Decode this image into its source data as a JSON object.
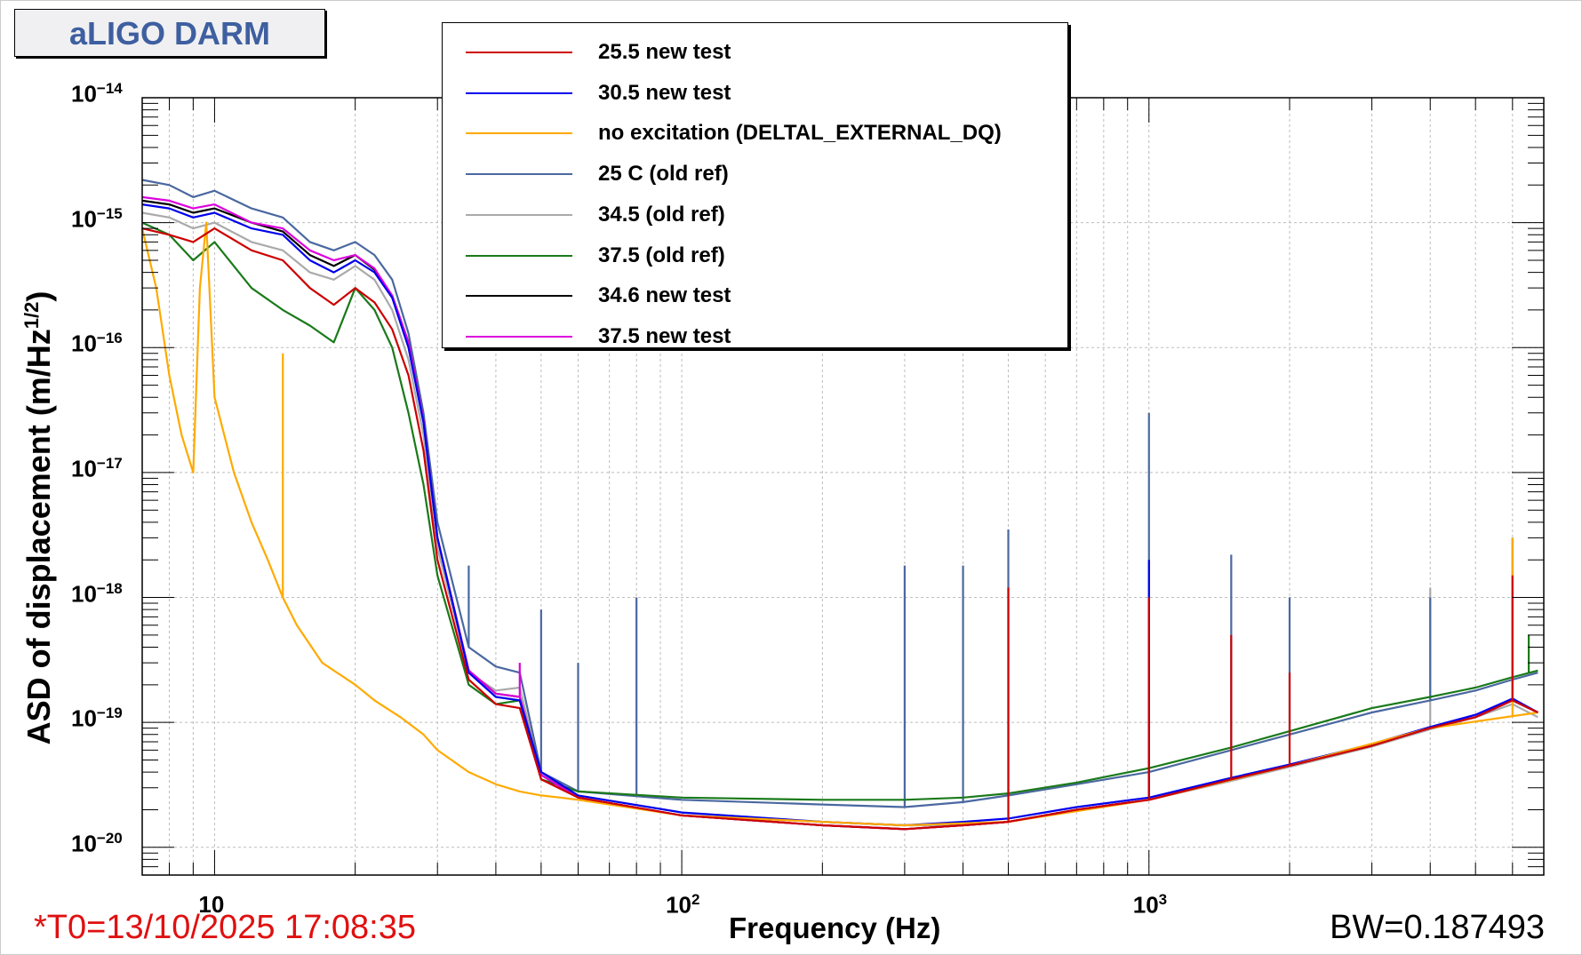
{
  "title": "aLIGO DARM",
  "t0_text": "*T0=13/10/2025 17:08:35",
  "bw_text": "BW=0.187493",
  "chart_data": {
    "type": "line",
    "xlabel": "Frequency (Hz)",
    "ylabel": "ASD of displacement (m/Hz^1/2)",
    "xscale": "log",
    "yscale": "log",
    "xlim": [
      7,
      7000
    ],
    "ylim": [
      6e-21,
      1e-14
    ],
    "grid": true,
    "legend_position": "top-center",
    "x_tick_labels": [
      {
        "value": 10,
        "label": "10"
      },
      {
        "value": 100,
        "label": "10",
        "exp": "2"
      },
      {
        "value": 1000,
        "label": "10",
        "exp": "3"
      }
    ],
    "y_tick_labels": [
      {
        "value": 1e-20,
        "label": "10",
        "exp": "−20"
      },
      {
        "value": 1e-19,
        "label": "10",
        "exp": "−19"
      },
      {
        "value": 1e-18,
        "label": "10",
        "exp": "−18"
      },
      {
        "value": 1e-17,
        "label": "10",
        "exp": "−17"
      },
      {
        "value": 1e-16,
        "label": "10",
        "exp": "−16"
      },
      {
        "value": 1e-15,
        "label": "10",
        "exp": "−15"
      },
      {
        "value": 1e-14,
        "label": "10",
        "exp": "−14"
      }
    ],
    "series": [
      {
        "name": "25.5 new test",
        "color": "#cc0000",
        "x": [
          7,
          8,
          9,
          10,
          12,
          14,
          16,
          18,
          20,
          22,
          24,
          26,
          28,
          30,
          35,
          40,
          45,
          50,
          60,
          100,
          200,
          300,
          400,
          500,
          700,
          1000,
          1500,
          2000,
          3000,
          4000,
          5000,
          6000,
          6800
        ],
        "y": [
          9e-16,
          8e-16,
          7e-16,
          9e-16,
          6e-16,
          5e-16,
          3e-16,
          2.2e-16,
          3e-16,
          2.3e-16,
          1.4e-16,
          6e-17,
          1.5e-17,
          2e-18,
          2.2e-19,
          1.4e-19,
          1.3e-19,
          3.5e-20,
          2.5e-20,
          1.8e-20,
          1.5e-20,
          1.4e-20,
          1.5e-20,
          1.6e-20,
          2e-20,
          2.4e-20,
          3.5e-20,
          4.5e-20,
          6.5e-20,
          9e-20,
          1.1e-19,
          1.5e-19,
          1.2e-19
        ],
        "peaks": [
          {
            "x": 500,
            "y": 1.2e-18
          },
          {
            "x": 1000,
            "y": 1e-18
          },
          {
            "x": 1500,
            "y": 5e-19
          },
          {
            "x": 2000,
            "y": 2.5e-19
          },
          {
            "x": 6000,
            "y": 1.5e-18
          }
        ]
      },
      {
        "name": "30.5 new test",
        "color": "#0000ee",
        "x": [
          7,
          8,
          9,
          10,
          12,
          14,
          16,
          18,
          20,
          22,
          24,
          26,
          28,
          30,
          35,
          40,
          45,
          50,
          60,
          100,
          200,
          300,
          400,
          500,
          700,
          1000,
          1500,
          2000,
          3000,
          4000,
          5000,
          6000,
          6800
        ],
        "y": [
          1.4e-15,
          1.3e-15,
          1.1e-15,
          1.2e-15,
          9e-16,
          8e-16,
          5e-16,
          4e-16,
          5e-16,
          4e-16,
          2.5e-16,
          1e-16,
          2.5e-17,
          3e-18,
          2.5e-19,
          1.6e-19,
          1.5e-19,
          4e-20,
          2.6e-20,
          1.9e-20,
          1.6e-20,
          1.5e-20,
          1.6e-20,
          1.7e-20,
          2.1e-20,
          2.5e-20,
          3.6e-20,
          4.6e-20,
          6.7e-20,
          9.2e-20,
          1.15e-19,
          1.55e-19,
          1.2e-19
        ],
        "peaks": [
          {
            "x": 1000,
            "y": 2e-18
          },
          {
            "x": 6000,
            "y": 1e-18
          }
        ]
      },
      {
        "name": "no excitation (DELTAL_EXTERNAL_DQ)",
        "color": "#ffaa00",
        "x": [
          7,
          7.5,
          8,
          8.5,
          9,
          9.3,
          9.6,
          10,
          11,
          12,
          13,
          14,
          15,
          17,
          20,
          22,
          25,
          28,
          30,
          35,
          40,
          45,
          50,
          55,
          60,
          100,
          200,
          300,
          500,
          1000,
          2000,
          4000,
          6800
        ],
        "y": [
          9e-16,
          3e-16,
          6e-17,
          2e-17,
          1e-17,
          3e-16,
          1e-15,
          4e-17,
          1e-17,
          4e-18,
          2e-18,
          1e-18,
          6e-19,
          3e-19,
          2e-19,
          1.5e-19,
          1.1e-19,
          8e-20,
          6e-20,
          4e-20,
          3.2e-20,
          2.8e-20,
          2.6e-20,
          2.5e-20,
          2.4e-20,
          1.8e-20,
          1.6e-20,
          1.5e-20,
          1.6e-20,
          2.4e-20,
          4.5e-20,
          9e-20,
          1.2e-19
        ],
        "peaks": [
          {
            "x": 14,
            "y": 9e-17
          },
          {
            "x": 6000,
            "y": 3e-18
          }
        ]
      },
      {
        "name": "25 C (old ref)",
        "color": "#4a68a0",
        "x": [
          7,
          8,
          9,
          10,
          12,
          14,
          16,
          18,
          20,
          22,
          24,
          26,
          28,
          30,
          35,
          40,
          45,
          50,
          60,
          100,
          200,
          300,
          400,
          500,
          700,
          1000,
          1500,
          2000,
          3000,
          4000,
          5000,
          6000,
          6800
        ],
        "y": [
          2.2e-15,
          2e-15,
          1.6e-15,
          1.8e-15,
          1.3e-15,
          1.1e-15,
          7e-16,
          6e-16,
          7e-16,
          5.5e-16,
          3.5e-16,
          1.3e-16,
          3e-17,
          4e-18,
          4e-19,
          2.8e-19,
          2.5e-19,
          4e-20,
          2.8e-20,
          2.4e-20,
          2.2e-20,
          2.1e-20,
          2.3e-20,
          2.6e-20,
          3.2e-20,
          4e-20,
          6e-20,
          8e-20,
          1.2e-19,
          1.5e-19,
          1.8e-19,
          2.2e-19,
          2.5e-19
        ],
        "peaks": [
          {
            "x": 35,
            "y": 1.8e-18
          },
          {
            "x": 50,
            "y": 8e-19
          },
          {
            "x": 60,
            "y": 3e-19
          },
          {
            "x": 80,
            "y": 1e-18
          },
          {
            "x": 300,
            "y": 1.8e-18
          },
          {
            "x": 400,
            "y": 1.8e-18
          },
          {
            "x": 500,
            "y": 3.5e-18
          },
          {
            "x": 1000,
            "y": 3e-17
          },
          {
            "x": 1500,
            "y": 2.2e-18
          },
          {
            "x": 2000,
            "y": 1e-18
          },
          {
            "x": 4000,
            "y": 1e-18
          },
          {
            "x": 6000,
            "y": 3e-18
          }
        ]
      },
      {
        "name": "34.5 (old ref)",
        "color": "#aaaaaa",
        "x": [
          7,
          8,
          9,
          10,
          12,
          14,
          16,
          18,
          20,
          22,
          24,
          26,
          28,
          30,
          35,
          40,
          45,
          50,
          60,
          100,
          200,
          300,
          400,
          500,
          700,
          1000,
          1500,
          2000,
          3000,
          4000,
          5000,
          6000,
          6800
        ],
        "y": [
          1.2e-15,
          1.1e-15,
          9e-16,
          1e-15,
          7e-16,
          6e-16,
          4e-16,
          3.5e-16,
          4.5e-16,
          3.5e-16,
          2e-16,
          8e-17,
          2e-17,
          2.5e-18,
          2.5e-19,
          1.8e-19,
          1.9e-19,
          3.8e-20,
          2.6e-20,
          1.9e-20,
          1.6e-20,
          1.5e-20,
          1.5e-20,
          1.6e-20,
          2e-20,
          2.4e-20,
          3.4e-20,
          4.4e-20,
          6.4e-20,
          8.8e-20,
          1.1e-19,
          1.4e-19,
          1.1e-19
        ],
        "peaks": [
          {
            "x": 4000,
            "y": 1.2e-18
          }
        ]
      },
      {
        "name": "37.5 (old ref)",
        "color": "#1a7a1a",
        "x": [
          7,
          8,
          9,
          10,
          12,
          14,
          16,
          18,
          20,
          22,
          24,
          26,
          28,
          30,
          35,
          40,
          45,
          50,
          60,
          100,
          200,
          300,
          400,
          500,
          700,
          1000,
          1500,
          2000,
          3000,
          4000,
          5000,
          6000,
          6800
        ],
        "y": [
          1e-15,
          8e-16,
          5e-16,
          7e-16,
          3e-16,
          2e-16,
          1.5e-16,
          1.1e-16,
          3e-16,
          2e-16,
          1e-16,
          3e-17,
          8e-18,
          1.5e-18,
          2e-19,
          1.4e-19,
          1.5e-19,
          3.5e-20,
          2.8e-20,
          2.5e-20,
          2.4e-20,
          2.4e-20,
          2.5e-20,
          2.7e-20,
          3.3e-20,
          4.3e-20,
          6.3e-20,
          8.5e-20,
          1.3e-19,
          1.6e-19,
          1.9e-19,
          2.3e-19,
          2.6e-19
        ],
        "peaks": [
          {
            "x": 6500,
            "y": 5e-19
          }
        ]
      },
      {
        "name": "34.6 new test",
        "color": "#000000",
        "x": [
          7,
          8,
          9,
          10,
          12,
          14,
          16,
          18,
          20,
          22,
          24,
          26,
          28,
          30,
          35,
          40,
          45,
          50,
          60,
          100,
          200,
          300,
          400,
          500,
          700,
          1000,
          1500,
          2000,
          3000,
          4000,
          5000,
          6000,
          6800
        ],
        "y": [
          1.5e-15,
          1.4e-15,
          1.2e-15,
          1.3e-15,
          1e-15,
          8.5e-16,
          5.5e-16,
          4.5e-16,
          5.5e-16,
          4.2e-16,
          2.6e-16,
          1.1e-16,
          2.6e-17,
          3e-18,
          2.6e-19,
          1.7e-19,
          1.6e-19,
          3.8e-20,
          2.5e-20,
          1.8e-20,
          1.5e-20,
          1.4e-20,
          1.5e-20,
          1.6e-20,
          2e-20,
          2.4e-20,
          3.5e-20,
          4.5e-20,
          6.6e-20,
          9e-20,
          1.1e-19,
          1.5e-19,
          1.2e-19
        ],
        "peaks": []
      },
      {
        "name": "37.5 new test",
        "color": "#dd00dd",
        "x": [
          7,
          8,
          9,
          10,
          12,
          14,
          16,
          18,
          20,
          22,
          24,
          26,
          28,
          30,
          35,
          40,
          45,
          50,
          60,
          100,
          200,
          300,
          400,
          500,
          700,
          1000,
          1500,
          2000,
          3000,
          4000,
          5000,
          6000,
          6800
        ],
        "y": [
          1.6e-15,
          1.5e-15,
          1.3e-15,
          1.4e-15,
          1e-15,
          9e-16,
          6e-16,
          5e-16,
          5.5e-16,
          4.3e-16,
          2.6e-16,
          1.1e-16,
          2.6e-17,
          3e-18,
          2.6e-19,
          1.7e-19,
          1.6e-19,
          3.8e-20,
          2.5e-20,
          1.8e-20,
          1.5e-20,
          1.4e-20,
          1.5e-20,
          1.6e-20,
          2e-20,
          2.4e-20,
          3.5e-20,
          4.5e-20,
          6.6e-20,
          9e-20,
          1.1e-19,
          1.5e-19,
          1.2e-19
        ],
        "peaks": [
          {
            "x": 45,
            "y": 3e-19
          }
        ]
      }
    ]
  }
}
